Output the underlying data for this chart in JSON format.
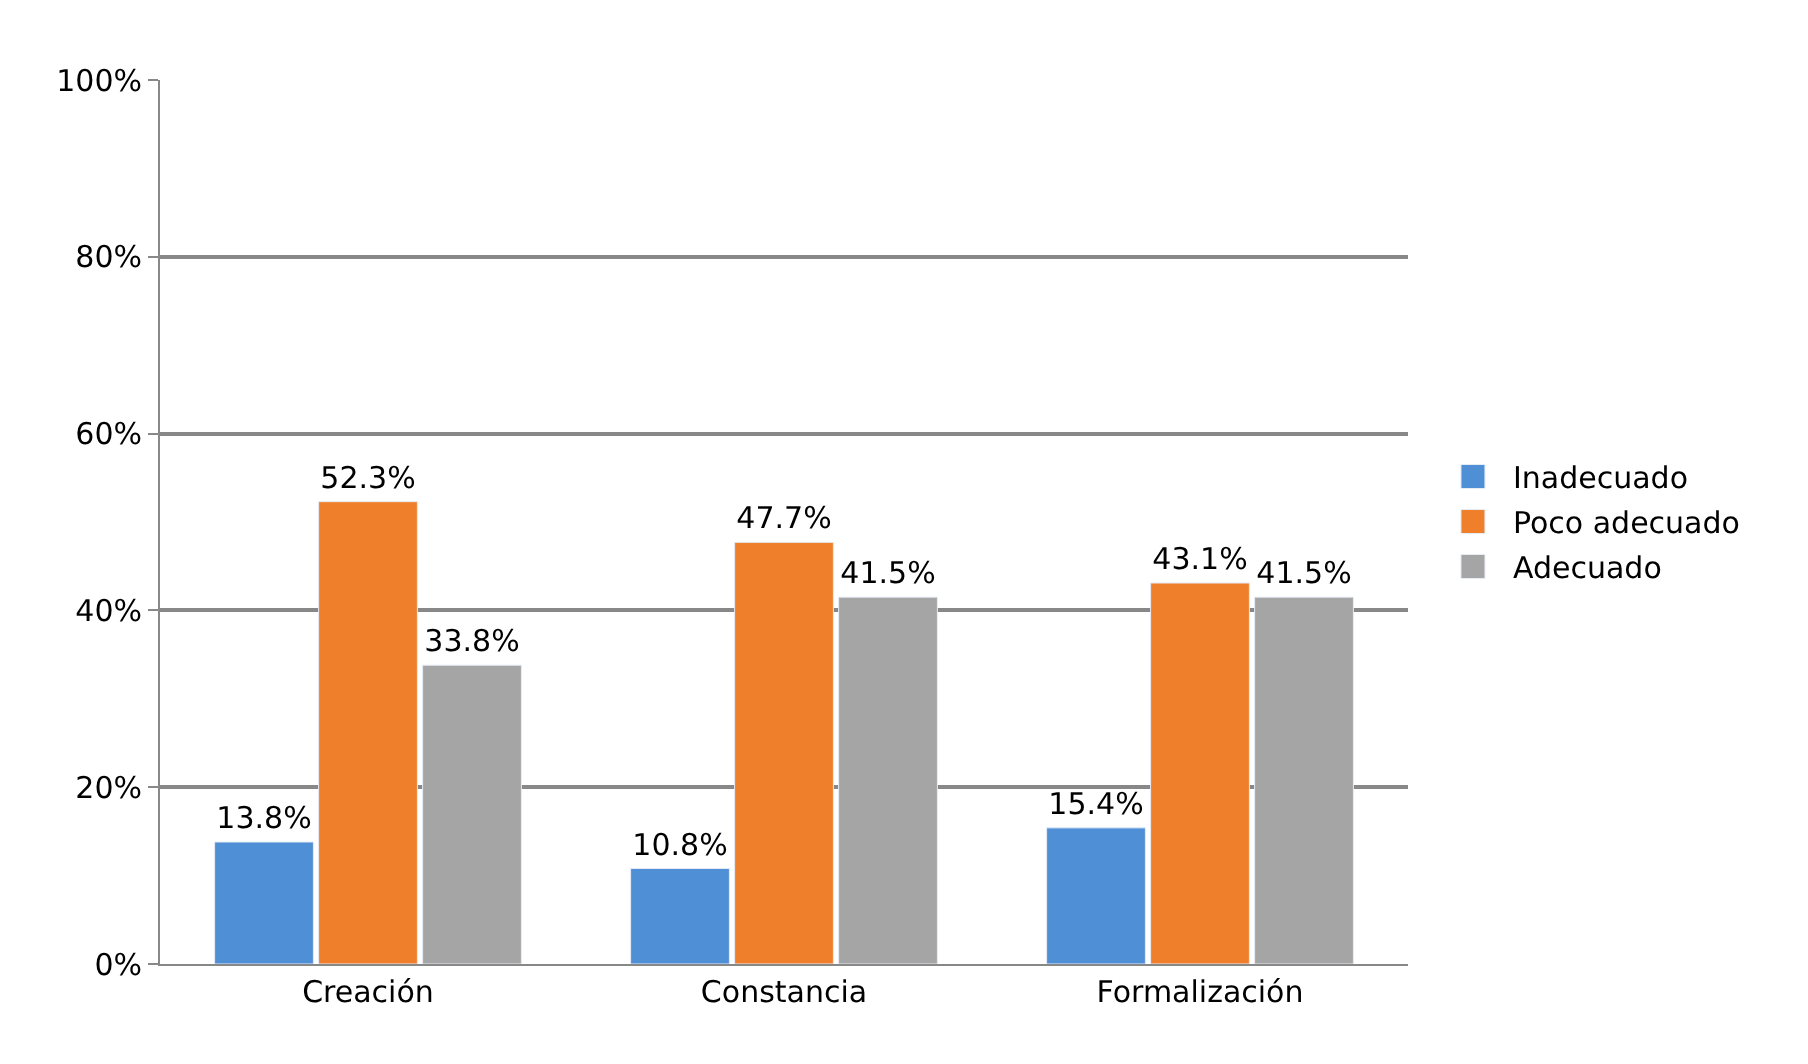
{
  "chart_data": {
    "type": "bar",
    "categories": [
      "Creación",
      "Constancia",
      "Formalización"
    ],
    "series": [
      {
        "name": "Inadecuado",
        "color": "#4f8fd6",
        "values": [
          13.8,
          10.8,
          15.4
        ],
        "value_labels": [
          "13.8%",
          "10.8%",
          "15.4%"
        ]
      },
      {
        "name": "Poco adecuado",
        "color": "#f07f2c",
        "values": [
          52.3,
          47.7,
          43.1
        ],
        "value_labels": [
          "52.3%",
          "47.7%",
          "43.1%"
        ]
      },
      {
        "name": "Adecuado",
        "color": "#a5a5a5",
        "values": [
          33.8,
          41.5,
          41.5
        ],
        "value_labels": [
          "33.8%",
          "41.5%",
          "41.5%"
        ]
      }
    ],
    "ylim": [
      0,
      100
    ],
    "yticks": [
      {
        "value": 0,
        "label": "0%"
      },
      {
        "value": 20,
        "label": "20%"
      },
      {
        "value": 40,
        "label": "40%"
      },
      {
        "value": 60,
        "label": "60%"
      },
      {
        "value": 80,
        "label": "80%"
      },
      {
        "value": 100,
        "label": "100%"
      }
    ],
    "grid": "y",
    "legend": "right"
  }
}
